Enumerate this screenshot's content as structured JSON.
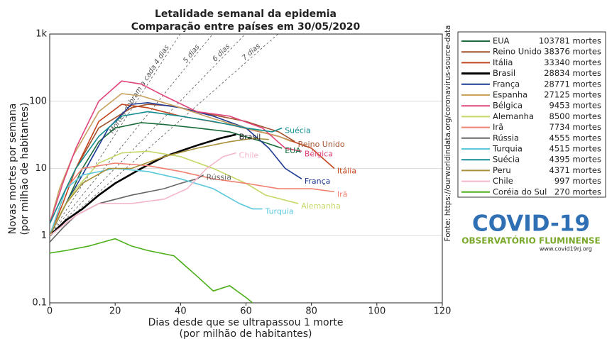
{
  "chart_data": {
    "type": "line",
    "title": [
      "Letalidade semanal da epidemia",
      "Comparação entre países em 30/05/2020"
    ],
    "x_label": [
      "Dias desde que se ultrapassou 1 morte",
      "(por milhão de habitantes)"
    ],
    "y_label": [
      "Novas mortes por semana",
      "(por milhão de habitantes)"
    ],
    "xlim": [
      0,
      120
    ],
    "xticks": [
      0,
      20,
      40,
      60,
      80,
      100,
      120
    ],
    "ylim": [
      0.1,
      1000
    ],
    "yticks": [
      0.1,
      1,
      10,
      100,
      {
        "value": 1000,
        "label": "1k"
      }
    ],
    "y_scale": "log",
    "grid": true,
    "doubling_lines": [
      {
        "label": "Mortes dobram a cada 4 dias",
        "days": 4
      },
      {
        "label": "5 dias",
        "days": 5
      },
      {
        "label": "6 dias",
        "days": 6
      },
      {
        "label": "7 dias",
        "days": 7
      }
    ],
    "source": "Fonte: https://ourworldindata.org/coronavirus-source-data",
    "series": [
      {
        "name": "EUA",
        "deaths": "103781 mortes",
        "color": "#1a6b3a",
        "end_label": true,
        "x": [
          0,
          5,
          10,
          15,
          20,
          28,
          35,
          45,
          55,
          65,
          71
        ],
        "values": [
          1,
          3,
          10,
          25,
          40,
          48,
          45,
          40,
          35,
          25,
          20
        ]
      },
      {
        "name": "Reino Unido",
        "deaths": "38376 mortes",
        "color": "#a0522d",
        "end_label": true,
        "x": [
          0,
          4,
          8,
          15,
          25,
          30,
          38,
          45,
          60,
          70,
          75
        ],
        "values": [
          1.5,
          4,
          10,
          40,
          80,
          90,
          85,
          70,
          50,
          35,
          25
        ]
      },
      {
        "name": "Itália",
        "deaths": "33340 mortes",
        "color": "#c2451e",
        "end_label": true,
        "x": [
          0,
          4,
          8,
          15,
          22,
          30,
          40,
          55,
          70,
          80,
          87
        ],
        "values": [
          1,
          3,
          10,
          50,
          90,
          80,
          60,
          45,
          30,
          20,
          10
        ]
      },
      {
        "name": "Brasil",
        "deaths": "28834 mortes",
        "color": "#000000",
        "end_label": true,
        "x": [
          0,
          5,
          10,
          15,
          20,
          28,
          35,
          45,
          52,
          57
        ],
        "values": [
          1,
          1.7,
          2.5,
          4,
          6,
          10,
          15,
          22,
          28,
          32
        ]
      },
      {
        "name": "França",
        "deaths": "28771 mortes",
        "color": "#1f3a93",
        "end_label": true,
        "x": [
          0,
          5,
          10,
          18,
          25,
          30,
          40,
          50,
          60,
          67,
          72,
          77
        ],
        "values": [
          1,
          3,
          8,
          40,
          90,
          95,
          80,
          60,
          40,
          20,
          10,
          7
        ]
      },
      {
        "name": "Espanha",
        "deaths": "27125 mortes",
        "color": "#c8a060",
        "end_label": false,
        "x": [
          0,
          3,
          7,
          15,
          22,
          28,
          40,
          50,
          60,
          70,
          74
        ],
        "values": [
          1.5,
          5,
          15,
          70,
          130,
          120,
          80,
          55,
          40,
          30,
          25
        ]
      },
      {
        "name": "Bélgica",
        "deaths": "9453 mortes",
        "color": "#e0457b",
        "end_label": true,
        "x": [
          0,
          4,
          8,
          15,
          22,
          28,
          35,
          45,
          55,
          65,
          72,
          77
        ],
        "values": [
          1.5,
          6,
          20,
          100,
          200,
          180,
          120,
          70,
          60,
          40,
          20,
          18
        ]
      },
      {
        "name": "Alemanha",
        "deaths": "8500 mortes",
        "color": "#c5d96a",
        "end_label": true,
        "x": [
          0,
          4,
          8,
          15,
          22,
          30,
          40,
          50,
          60,
          66,
          76
        ],
        "values": [
          1,
          2.5,
          5,
          12,
          17,
          18,
          15,
          10,
          6,
          4,
          3
        ]
      },
      {
        "name": "Irã",
        "deaths": "7734 mortes",
        "color": "#f08070",
        "end_label": true,
        "x": [
          0,
          5,
          10,
          20,
          30,
          40,
          50,
          60,
          70,
          80,
          87
        ],
        "values": [
          1,
          5,
          10,
          12,
          11,
          9,
          7,
          6,
          5,
          5,
          4.5
        ]
      },
      {
        "name": "Rússia",
        "deaths": "4555 mortes",
        "color": "#666666",
        "end_label": true,
        "x": [
          0,
          4,
          8,
          15,
          25,
          35,
          40,
          45,
          47
        ],
        "values": [
          0.8,
          1.3,
          2,
          3,
          4,
          5,
          6,
          7,
          8
        ]
      },
      {
        "name": "Turquia",
        "deaths": "4515 mortes",
        "color": "#5bc8dc",
        "end_label": true,
        "x": [
          0,
          5,
          10,
          20,
          30,
          40,
          50,
          58,
          62,
          65
        ],
        "values": [
          1,
          5,
          8,
          10,
          9,
          7,
          5,
          3,
          2.5,
          2.5
        ]
      },
      {
        "name": "Suécia",
        "deaths": "4395 mortes",
        "color": "#138d90",
        "end_label": true,
        "x": [
          0,
          4,
          8,
          15,
          22,
          30,
          40,
          50,
          60,
          68,
          71
        ],
        "values": [
          1.5,
          4,
          10,
          30,
          60,
          70,
          60,
          50,
          40,
          35,
          40
        ]
      },
      {
        "name": "Peru",
        "deaths": "4371 mortes",
        "color": "#a88f3a",
        "end_label": false,
        "x": [
          0,
          5,
          10,
          18,
          25,
          35,
          45,
          55,
          62,
          67
        ],
        "values": [
          1,
          3,
          6,
          10,
          10,
          15,
          20,
          25,
          28,
          27
        ]
      },
      {
        "name": "Chile",
        "deaths": "997 mortes",
        "color": "#f4b6c8",
        "end_label": true,
        "x": [
          0,
          8,
          15,
          25,
          35,
          42,
          48,
          53,
          57
        ],
        "values": [
          1,
          2,
          3,
          3,
          3.5,
          5,
          10,
          15,
          17
        ]
      },
      {
        "name": "Coréia do Sul",
        "deaths": "270 mortes",
        "color": "#4caf1a",
        "end_label": false,
        "x": [
          0,
          5,
          12,
          20,
          25,
          30,
          38,
          45,
          50,
          55,
          60,
          62
        ],
        "values": [
          0.55,
          0.6,
          0.7,
          0.9,
          0.7,
          0.6,
          0.5,
          0.25,
          0.15,
          0.18,
          0.12,
          0.1
        ]
      }
    ],
    "logo": {
      "title": "COVID-19",
      "subtitle": "OBSERVATÓRIO FLUMINENSE",
      "url": "www.covid19rj.org"
    }
  }
}
